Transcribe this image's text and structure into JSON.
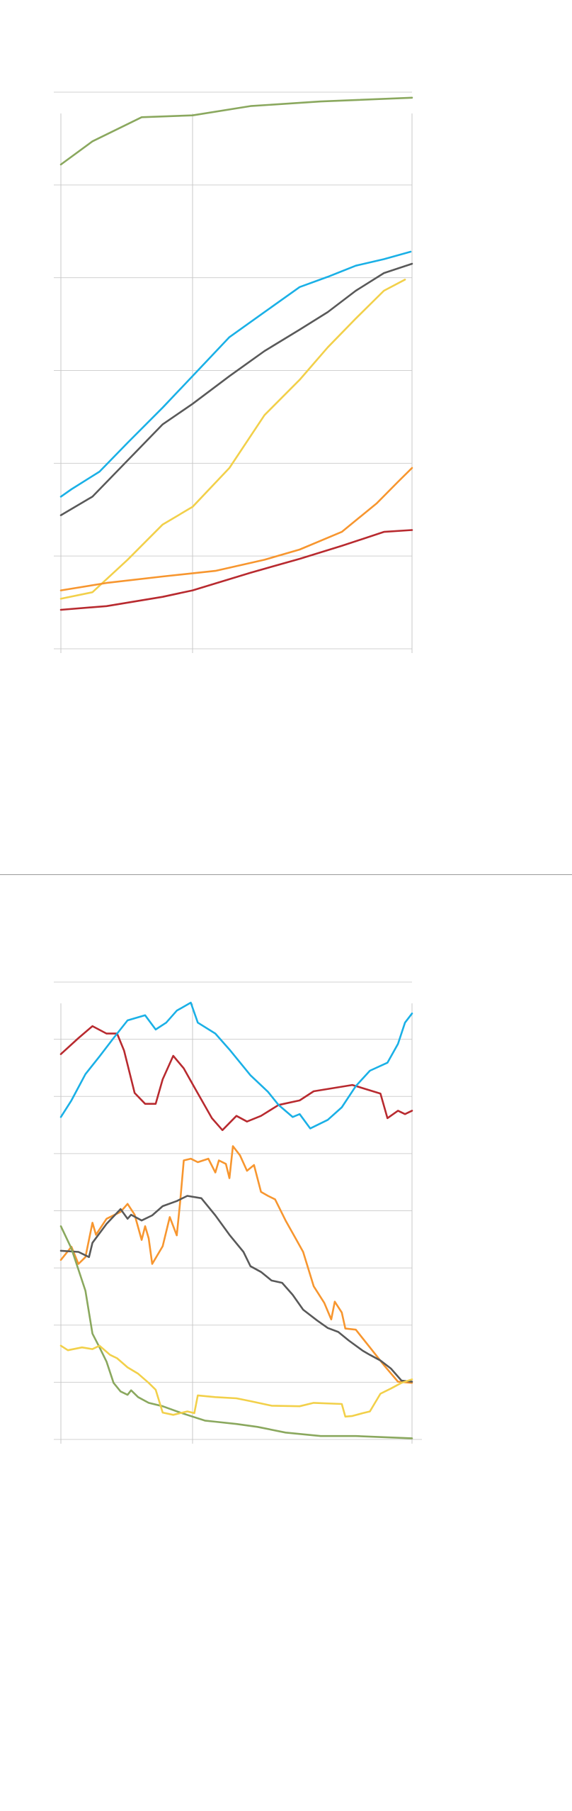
{
  "colors": {
    "grid": "#d0d0d0",
    "axis": "#c8c8c8"
  },
  "chart_data": [
    {
      "type": "line",
      "title": "",
      "xlabel": "",
      "ylabel": "",
      "xlim": [
        0,
        100
      ],
      "ylim": [
        0,
        6
      ],
      "y_gridlines": [
        0,
        1,
        2,
        3,
        4,
        5,
        6
      ],
      "x_gridlines": [
        0,
        37.5,
        100
      ],
      "grid": true,
      "legend": "none",
      "series": [
        {
          "color": "#8aa85e",
          "points": [
            [
              0,
              5.22
            ],
            [
              9,
              5.47
            ],
            [
              23,
              5.73
            ],
            [
              37.5,
              5.75
            ],
            [
              54,
              5.85
            ],
            [
              74,
              5.9
            ],
            [
              100,
              5.94
            ]
          ]
        },
        {
          "color": "#1ab0e6",
          "points": [
            [
              0,
              1.64
            ],
            [
              3,
              1.72
            ],
            [
              11,
              1.91
            ],
            [
              19,
              2.22
            ],
            [
              29,
              2.6
            ],
            [
              37.5,
              2.94
            ],
            [
              48,
              3.36
            ],
            [
              58,
              3.63
            ],
            [
              68,
              3.9
            ],
            [
              76,
              4.01
            ],
            [
              84,
              4.13
            ],
            [
              92,
              4.2
            ],
            [
              99.6,
              4.28
            ]
          ]
        },
        {
          "color": "#595959",
          "points": [
            [
              0,
              1.44
            ],
            [
              9,
              1.64
            ],
            [
              19,
              2.03
            ],
            [
              29,
              2.42
            ],
            [
              37.5,
              2.64
            ],
            [
              48,
              2.94
            ],
            [
              58,
              3.21
            ],
            [
              68,
              3.44
            ],
            [
              76,
              3.63
            ],
            [
              84,
              3.86
            ],
            [
              92,
              4.05
            ],
            [
              100,
              4.15
            ]
          ]
        },
        {
          "color": "#f2d04a",
          "points": [
            [
              0,
              0.54
            ],
            [
              9,
              0.61
            ],
            [
              19,
              0.96
            ],
            [
              29,
              1.34
            ],
            [
              37.5,
              1.53
            ],
            [
              48,
              1.95
            ],
            [
              58,
              2.52
            ],
            [
              68,
              2.9
            ],
            [
              76,
              3.25
            ],
            [
              84,
              3.56
            ],
            [
              92,
              3.86
            ],
            [
              98,
              3.98
            ]
          ]
        },
        {
          "color": "#f7962f",
          "points": [
            [
              0,
              0.63
            ],
            [
              13,
              0.71
            ],
            [
              29,
              0.78
            ],
            [
              44,
              0.84
            ],
            [
              58,
              0.96
            ],
            [
              68,
              1.07
            ],
            [
              80,
              1.26
            ],
            [
              90,
              1.57
            ],
            [
              96,
              1.8
            ],
            [
              100,
              1.95
            ]
          ]
        },
        {
          "color": "#b82a2f",
          "points": [
            [
              0,
              0.42
            ],
            [
              13,
              0.46
            ],
            [
              29,
              0.56
            ],
            [
              37.5,
              0.63
            ],
            [
              54,
              0.82
            ],
            [
              68,
              0.97
            ],
            [
              80,
              1.11
            ],
            [
              92,
              1.26
            ],
            [
              100,
              1.28
            ]
          ]
        }
      ]
    },
    {
      "type": "line",
      "title": "",
      "xlabel": "",
      "ylabel": "",
      "xlim": [
        0,
        100
      ],
      "ylim": [
        0,
        8
      ],
      "y_gridlines": [
        0,
        1,
        2,
        3,
        4,
        5,
        6,
        7,
        8
      ],
      "x_gridlines": [
        0,
        37.5,
        100
      ],
      "grid": true,
      "legend": "none",
      "series": [
        {
          "color": "#b82a2f",
          "points": [
            [
              0,
              6.74
            ],
            [
              5,
              7.02
            ],
            [
              9,
              7.23
            ],
            [
              13,
              7.1
            ],
            [
              16,
              7.1
            ],
            [
              18,
              6.8
            ],
            [
              21,
              6.06
            ],
            [
              24,
              5.87
            ],
            [
              27,
              5.87
            ],
            [
              29,
              6.3
            ],
            [
              32,
              6.71
            ],
            [
              35,
              6.49
            ],
            [
              38,
              6.16
            ],
            [
              43,
              5.62
            ],
            [
              46,
              5.41
            ],
            [
              50,
              5.66
            ],
            [
              53,
              5.56
            ],
            [
              57,
              5.66
            ],
            [
              62,
              5.85
            ],
            [
              68,
              5.93
            ],
            [
              72,
              6.09
            ],
            [
              83,
              6.2
            ],
            [
              91,
              6.05
            ],
            [
              93,
              5.62
            ],
            [
              96,
              5.75
            ],
            [
              98,
              5.69
            ],
            [
              100,
              5.75
            ]
          ]
        },
        {
          "color": "#1ab0e6",
          "points": [
            [
              0,
              5.64
            ],
            [
              3,
              5.93
            ],
            [
              7,
              6.39
            ],
            [
              11,
              6.7
            ],
            [
              15,
              7.02
            ],
            [
              19,
              7.33
            ],
            [
              24,
              7.42
            ],
            [
              27,
              7.17
            ],
            [
              30,
              7.29
            ],
            [
              33,
              7.5
            ],
            [
              37,
              7.64
            ],
            [
              39,
              7.29
            ],
            [
              44,
              7.1
            ],
            [
              48,
              6.82
            ],
            [
              54,
              6.37
            ],
            [
              59,
              6.08
            ],
            [
              62,
              5.85
            ],
            [
              66,
              5.64
            ],
            [
              68,
              5.69
            ],
            [
              71,
              5.44
            ],
            [
              76,
              5.59
            ],
            [
              80,
              5.81
            ],
            [
              84,
              6.18
            ],
            [
              88,
              6.45
            ],
            [
              93,
              6.59
            ],
            [
              96,
              6.92
            ],
            [
              98,
              7.29
            ],
            [
              100,
              7.45
            ]
          ]
        },
        {
          "color": "#f7962f",
          "points": [
            [
              0,
              3.14
            ],
            [
              3,
              3.37
            ],
            [
              5,
              3.07
            ],
            [
              7,
              3.19
            ],
            [
              9,
              3.79
            ],
            [
              10,
              3.58
            ],
            [
              13,
              3.86
            ],
            [
              17,
              3.98
            ],
            [
              19,
              4.12
            ],
            [
              21,
              3.93
            ],
            [
              23,
              3.49
            ],
            [
              24,
              3.73
            ],
            [
              25,
              3.52
            ],
            [
              26,
              3.07
            ],
            [
              29,
              3.38
            ],
            [
              31,
              3.89
            ],
            [
              33,
              3.57
            ],
            [
              34,
              4.17
            ],
            [
              35,
              4.88
            ],
            [
              37,
              4.91
            ],
            [
              39,
              4.85
            ],
            [
              42,
              4.91
            ],
            [
              44,
              4.67
            ],
            [
              45,
              4.88
            ],
            [
              47,
              4.82
            ],
            [
              48,
              4.57
            ],
            [
              49,
              5.13
            ],
            [
              51,
              4.97
            ],
            [
              53,
              4.7
            ],
            [
              55,
              4.8
            ],
            [
              57,
              4.33
            ],
            [
              59,
              4.26
            ],
            [
              61,
              4.2
            ],
            [
              64,
              3.83
            ],
            [
              67,
              3.5
            ],
            [
              69,
              3.28
            ],
            [
              72,
              2.68
            ],
            [
              75,
              2.39
            ],
            [
              77,
              2.1
            ],
            [
              78,
              2.41
            ],
            [
              80,
              2.22
            ],
            [
              81,
              1.94
            ],
            [
              84,
              1.92
            ],
            [
              88,
              1.61
            ],
            [
              92,
              1.3
            ],
            [
              96,
              1.01
            ],
            [
              100,
              0.99
            ]
          ]
        },
        {
          "color": "#595959",
          "points": [
            [
              0,
              3.3
            ],
            [
              5,
              3.28
            ],
            [
              8,
              3.19
            ],
            [
              9,
              3.44
            ],
            [
              13,
              3.77
            ],
            [
              17,
              4.03
            ],
            [
              19,
              3.86
            ],
            [
              20,
              3.93
            ],
            [
              23,
              3.83
            ],
            [
              26,
              3.92
            ],
            [
              29,
              4.08
            ],
            [
              33,
              4.17
            ],
            [
              36,
              4.26
            ],
            [
              40,
              4.22
            ],
            [
              44,
              3.92
            ],
            [
              48,
              3.58
            ],
            [
              52,
              3.28
            ],
            [
              54,
              3.03
            ],
            [
              57,
              2.93
            ],
            [
              60,
              2.78
            ],
            [
              63,
              2.74
            ],
            [
              66,
              2.53
            ],
            [
              69,
              2.27
            ],
            [
              73,
              2.08
            ],
            [
              76,
              1.95
            ],
            [
              79,
              1.88
            ],
            [
              82,
              1.73
            ],
            [
              86,
              1.55
            ],
            [
              88,
              1.48
            ],
            [
              91,
              1.38
            ],
            [
              94,
              1.24
            ],
            [
              97,
              1.03
            ],
            [
              100,
              1.01
            ]
          ]
        },
        {
          "color": "#8aa85e",
          "points": [
            [
              0,
              3.73
            ],
            [
              3,
              3.34
            ],
            [
              5,
              2.97
            ],
            [
              7,
              2.6
            ],
            [
              8,
              2.22
            ],
            [
              9,
              1.85
            ],
            [
              11,
              1.61
            ],
            [
              13,
              1.36
            ],
            [
              15,
              0.99
            ],
            [
              17,
              0.84
            ],
            [
              19,
              0.78
            ],
            [
              20,
              0.86
            ],
            [
              22,
              0.74
            ],
            [
              25,
              0.64
            ],
            [
              29,
              0.58
            ],
            [
              34,
              0.47
            ],
            [
              37.5,
              0.4
            ],
            [
              41,
              0.33
            ],
            [
              44,
              0.31
            ],
            [
              50,
              0.27
            ],
            [
              56,
              0.22
            ],
            [
              64,
              0.12
            ],
            [
              74,
              0.06
            ],
            [
              84,
              0.06
            ],
            [
              100,
              0.02
            ]
          ]
        },
        {
          "color": "#f2d04a",
          "points": [
            [
              0,
              1.64
            ],
            [
              2,
              1.56
            ],
            [
              6,
              1.61
            ],
            [
              9,
              1.58
            ],
            [
              11,
              1.64
            ],
            [
              14,
              1.48
            ],
            [
              16,
              1.42
            ],
            [
              19,
              1.26
            ],
            [
              22,
              1.15
            ],
            [
              25,
              0.99
            ],
            [
              27,
              0.87
            ],
            [
              29,
              0.47
            ],
            [
              32,
              0.43
            ],
            [
              36,
              0.49
            ],
            [
              38,
              0.46
            ],
            [
              39,
              0.77
            ],
            [
              44,
              0.74
            ],
            [
              50,
              0.72
            ],
            [
              54,
              0.67
            ],
            [
              60,
              0.59
            ],
            [
              68,
              0.58
            ],
            [
              72,
              0.64
            ],
            [
              80,
              0.62
            ],
            [
              81,
              0.4
            ],
            [
              83,
              0.41
            ],
            [
              86,
              0.46
            ],
            [
              88,
              0.49
            ],
            [
              91,
              0.8
            ],
            [
              94,
              0.89
            ],
            [
              97,
              0.99
            ],
            [
              100,
              1.05
            ]
          ]
        }
      ]
    }
  ]
}
